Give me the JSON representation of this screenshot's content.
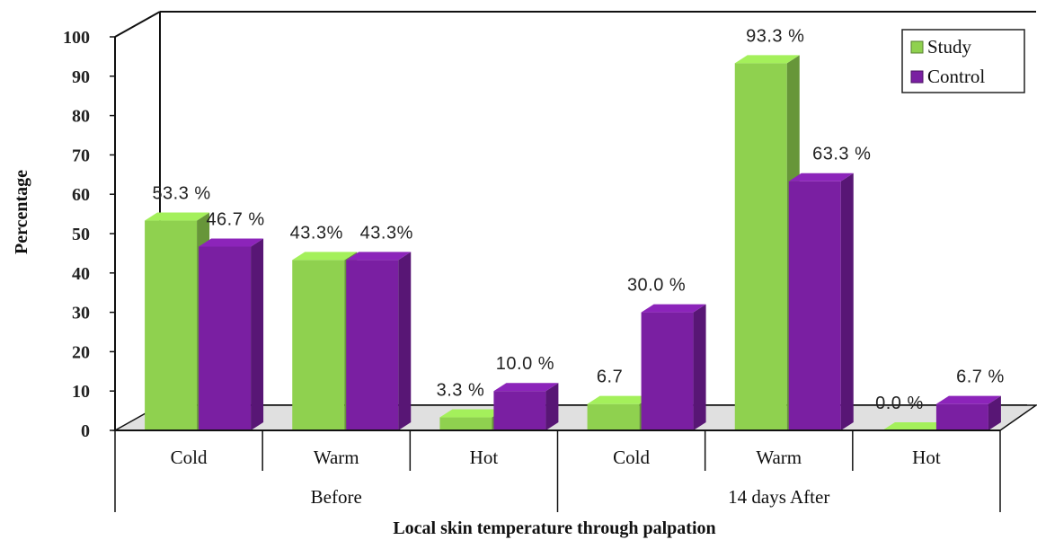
{
  "chart_data": {
    "type": "bar",
    "title": "",
    "xlabel": "Local skin temperature through palpation",
    "ylabel": "Percentage",
    "ylim": [
      0,
      100
    ],
    "yticks": [
      0,
      10,
      20,
      30,
      40,
      50,
      60,
      70,
      80,
      90,
      100
    ],
    "groups": [
      {
        "label": "Before",
        "categories": [
          "Cold",
          "Warm",
          "Hot"
        ]
      },
      {
        "label": "14 days After",
        "categories": [
          "Cold",
          "Warm",
          "Hot"
        ]
      }
    ],
    "categories": [
      "Cold",
      "Warm",
      "Hot",
      "Cold",
      "Warm",
      "Hot"
    ],
    "series": [
      {
        "name": "Study",
        "color": "#8fd14f",
        "values": [
          53.3,
          43.3,
          3.3,
          6.7,
          93.3,
          0.0
        ],
        "labels": [
          "53.3 %",
          "43.3%",
          "3.3 %",
          "6.7",
          "93.3 %",
          "0.0 %"
        ]
      },
      {
        "name": "Control",
        "color": "#7a1fa2",
        "values": [
          46.7,
          43.3,
          10.0,
          30.0,
          63.3,
          6.7
        ],
        "labels": [
          "46.7 %",
          "43.3%",
          "10.0 %",
          "30.0 %",
          "63.3 %",
          "6.7 %"
        ]
      }
    ],
    "legend": "top-right",
    "grid": false
  }
}
